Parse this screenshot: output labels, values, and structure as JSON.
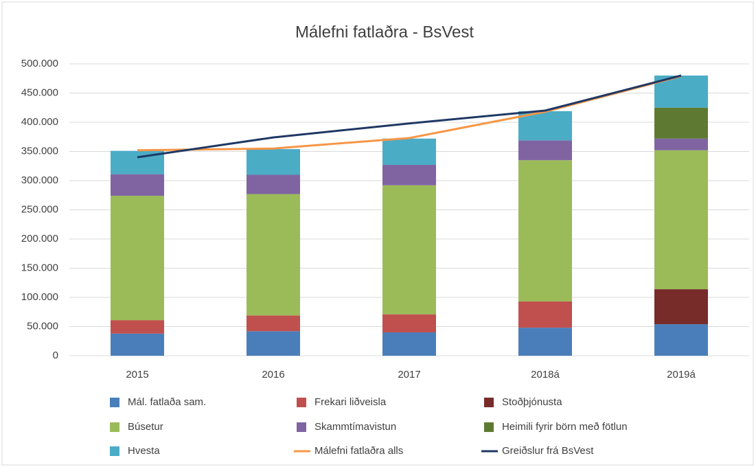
{
  "chart_data": {
    "type": "bar",
    "stacked": true,
    "title": "Málefni fatlaðra - BsVest",
    "categories": [
      "2015",
      "2016",
      "2017",
      "2018á",
      "2019á"
    ],
    "series": [
      {
        "name": "Mál. fatlaða sam.",
        "color": "#4a7ebb",
        "values": [
          38000,
          42000,
          40000,
          48000,
          54000
        ]
      },
      {
        "name": "Frekari liðveisla",
        "color": "#c0504d",
        "values": [
          23000,
          27000,
          31000,
          45000,
          0
        ]
      },
      {
        "name": "Stoðþjónusta",
        "color": "#772c2a",
        "values": [
          0,
          0,
          0,
          0,
          60000
        ]
      },
      {
        "name": "Búsetur",
        "color": "#9bbb59",
        "values": [
          213000,
          208000,
          221000,
          242000,
          238000
        ]
      },
      {
        "name": "Skammtímavistun",
        "color": "#8064a2",
        "values": [
          37000,
          33000,
          35000,
          34000,
          20000
        ]
      },
      {
        "name": "Heimili fyrir börn með fötlun",
        "color": "#5e7a32",
        "values": [
          0,
          0,
          0,
          0,
          53000
        ]
      },
      {
        "name": "Hvesta",
        "color": "#4bacc6",
        "values": [
          40000,
          44000,
          45000,
          50000,
          55000
        ]
      },
      {
        "name": "Málefni fatlaðra alls",
        "color": "#f79646",
        "type": "line",
        "values": [
          352000,
          355000,
          373000,
          418000,
          479000
        ]
      },
      {
        "name": "Greiðslur frá BsVest",
        "color": "#1f3864",
        "type": "line",
        "values": [
          340000,
          374000,
          398000,
          420000,
          480000
        ]
      }
    ],
    "ylim": [
      0,
      500000
    ],
    "yticks": [
      0,
      {
        "value": 50000,
        "label": "50.000"
      },
      {
        "value": 100000,
        "label": "100.000"
      },
      {
        "value": 150000,
        "label": "150.000"
      },
      {
        "value": 200000,
        "label": "200.000"
      },
      {
        "value": 250000,
        "label": "250.000"
      },
      {
        "value": 300000,
        "label": "300.000"
      },
      {
        "value": 350000,
        "label": "350.000"
      },
      {
        "value": 400000,
        "label": "400.000"
      },
      {
        "value": 450000,
        "label": "450.000"
      },
      {
        "value": 500000,
        "label": "500.000"
      }
    ],
    "grid": true,
    "legend": "bottom"
  }
}
